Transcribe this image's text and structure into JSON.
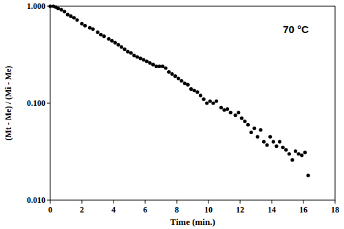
{
  "chart_data": {
    "type": "scatter",
    "x_label": "Time (min.)",
    "y_label": "(Mt - Me) / (Mi - Me)",
    "annotation": "70 °C",
    "log": "y",
    "grid": false,
    "color": "#000000",
    "marker": "circle",
    "xlim": [
      0,
      18
    ],
    "ylim": [
      0.01,
      1
    ],
    "xticks": [
      0,
      2,
      4,
      6,
      8,
      10,
      12,
      14,
      16,
      18
    ],
    "yticks": [
      {
        "value": 0.01,
        "label": "0.010"
      },
      {
        "value": 0.1,
        "label": "0.100"
      },
      {
        "value": 1,
        "label": "1.000"
      }
    ],
    "x": [
      0,
      0.2,
      0.35,
      0.5,
      0.7,
      0.9,
      1.1,
      1.3,
      1.5,
      1.7,
      2.0,
      2.2,
      2.5,
      2.7,
      3.0,
      3.2,
      3.4,
      3.7,
      3.9,
      4.1,
      4.3,
      4.5,
      4.7,
      4.9,
      5.1,
      5.3,
      5.5,
      5.7,
      5.9,
      6.1,
      6.3,
      6.5,
      6.7,
      6.9,
      7.1,
      7.3,
      7.5,
      7.7,
      7.9,
      8.1,
      8.3,
      8.5,
      8.7,
      8.9,
      9.1,
      9.3,
      9.5,
      9.7,
      9.9,
      10.1,
      10.3,
      10.5,
      10.8,
      11.0,
      11.2,
      11.4,
      11.7,
      11.9,
      12.1,
      12.3,
      12.5,
      12.7,
      12.9,
      13.1,
      13.3,
      13.5,
      13.7,
      13.9,
      14.1,
      14.3,
      14.5,
      14.7,
      14.9,
      15.1,
      15.3,
      15.5,
      15.7,
      15.9,
      16.1,
      16.3
    ],
    "values": [
      1.0,
      1.0,
      0.98,
      0.95,
      0.92,
      0.88,
      0.82,
      0.79,
      0.76,
      0.72,
      0.66,
      0.63,
      0.6,
      0.58,
      0.54,
      0.51,
      0.49,
      0.46,
      0.44,
      0.42,
      0.4,
      0.38,
      0.36,
      0.34,
      0.33,
      0.31,
      0.3,
      0.29,
      0.28,
      0.27,
      0.26,
      0.25,
      0.24,
      0.24,
      0.24,
      0.23,
      0.21,
      0.2,
      0.19,
      0.18,
      0.17,
      0.16,
      0.155,
      0.14,
      0.135,
      0.13,
      0.12,
      0.11,
      0.1,
      0.105,
      0.1,
      0.105,
      0.09,
      0.085,
      0.087,
      0.08,
      0.075,
      0.08,
      0.07,
      0.065,
      0.06,
      0.05,
      0.055,
      0.045,
      0.053,
      0.04,
      0.037,
      0.045,
      0.04,
      0.036,
      0.04,
      0.035,
      0.033,
      0.03,
      0.026,
      0.032,
      0.03,
      0.029,
      0.031,
      0.018
    ]
  }
}
